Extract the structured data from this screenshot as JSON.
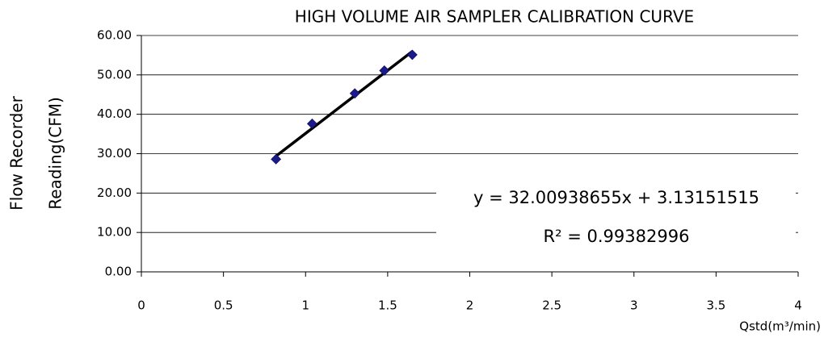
{
  "chart_data": {
    "type": "scatter",
    "title": "HIGH VOLUME AIR SAMPLER CALIBRATION CURVE",
    "xlabel": "Qstd(m³/min)",
    "ylabel": [
      "Flow Recorder",
      "Reading(CFM)"
    ],
    "x": [
      0.82,
      1.04,
      1.3,
      1.48,
      1.65
    ],
    "values": [
      28.6,
      37.6,
      45.3,
      51.1,
      55.1
    ],
    "color": "#1a1a8c",
    "xlim": [
      0,
      4
    ],
    "xticks": [
      0,
      0.5,
      1,
      1.5,
      2,
      2.5,
      3,
      3.5,
      4
    ],
    "ylim": [
      0,
      60
    ],
    "yticks": [
      {
        "value": 0,
        "label": "0.00"
      },
      {
        "value": 10,
        "label": "10.00"
      },
      {
        "value": 20,
        "label": "20.00"
      },
      {
        "value": 30,
        "label": "30.00"
      },
      {
        "value": 40,
        "label": "40.00"
      },
      {
        "value": 50,
        "label": "50.00"
      },
      {
        "value": 60,
        "label": "60.00"
      }
    ],
    "grid": true,
    "trendline": {
      "slope": 32.00938655,
      "intercept": 3.13151515,
      "label": "y = 32.00938655x + 3.13151515",
      "r2": 0.99382996,
      "r2_label": "R² = 0.99382996"
    }
  }
}
